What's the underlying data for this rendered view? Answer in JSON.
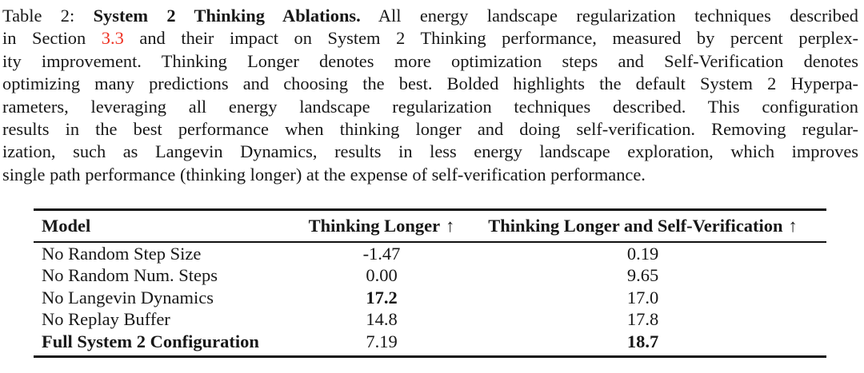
{
  "colors": {
    "background": "#ffffff",
    "text": "#171717",
    "section_link_red": "#ee3123",
    "rule": "#111111"
  },
  "caption": {
    "lines": [
      {
        "segments": [
          {
            "t": "Table 2: "
          },
          {
            "t": "System 2 Thinking Ablations."
          },
          {
            "t": " All energy landscape regularization techniques described"
          }
        ]
      },
      {
        "segments": [
          {
            "t": "in Section "
          },
          {
            "t": "3.3"
          },
          {
            "t": " and their impact on System 2 Thinking performance, measured by percent perplex-"
          }
        ]
      },
      {
        "segments": [
          {
            "t": "ity improvement. Thinking Longer denotes more optimization steps and Self-Verification denotes"
          }
        ]
      },
      {
        "segments": [
          {
            "t": "optimizing many predictions and choosing the best. Bolded highlights the default System 2 Hyperpa-"
          }
        ]
      },
      {
        "segments": [
          {
            "t": "rameters, leveraging all energy landscape regularization techniques described. This configuration"
          }
        ]
      },
      {
        "segments": [
          {
            "t": "results in the best performance when thinking longer and doing self-verification. Removing regular-"
          }
        ]
      },
      {
        "segments": [
          {
            "t": "ization, such as Langevin Dynamics, results in less energy landscape exploration, which improves"
          }
        ]
      },
      {
        "segments": [
          {
            "t": "single path performance (thinking longer) at the expense of self-verification performance."
          }
        ]
      }
    ]
  },
  "table": {
    "columns": [
      {
        "label": "Model"
      },
      {
        "label": "Thinking Longer",
        "arrow": "↑"
      },
      {
        "label": "Thinking Longer and Self-Verification",
        "arrow": "↑"
      }
    ],
    "rows": [
      {
        "model": "No Random Step Size",
        "thinking_longer": "-1.47",
        "thinking_longer_and_self_verification": "0.19"
      },
      {
        "model": "No Random Num. Steps",
        "thinking_longer": "0.00",
        "thinking_longer_and_self_verification": "9.65"
      },
      {
        "model": "No Langevin Dynamics",
        "thinking_longer": "17.2",
        "thinking_longer_and_self_verification": "17.0"
      },
      {
        "model": "No Replay Buffer",
        "thinking_longer": "14.8",
        "thinking_longer_and_self_verification": "17.8"
      },
      {
        "model": "Full System 2 Configuration",
        "thinking_longer": "7.19",
        "thinking_longer_and_self_verification": "18.7"
      }
    ]
  }
}
